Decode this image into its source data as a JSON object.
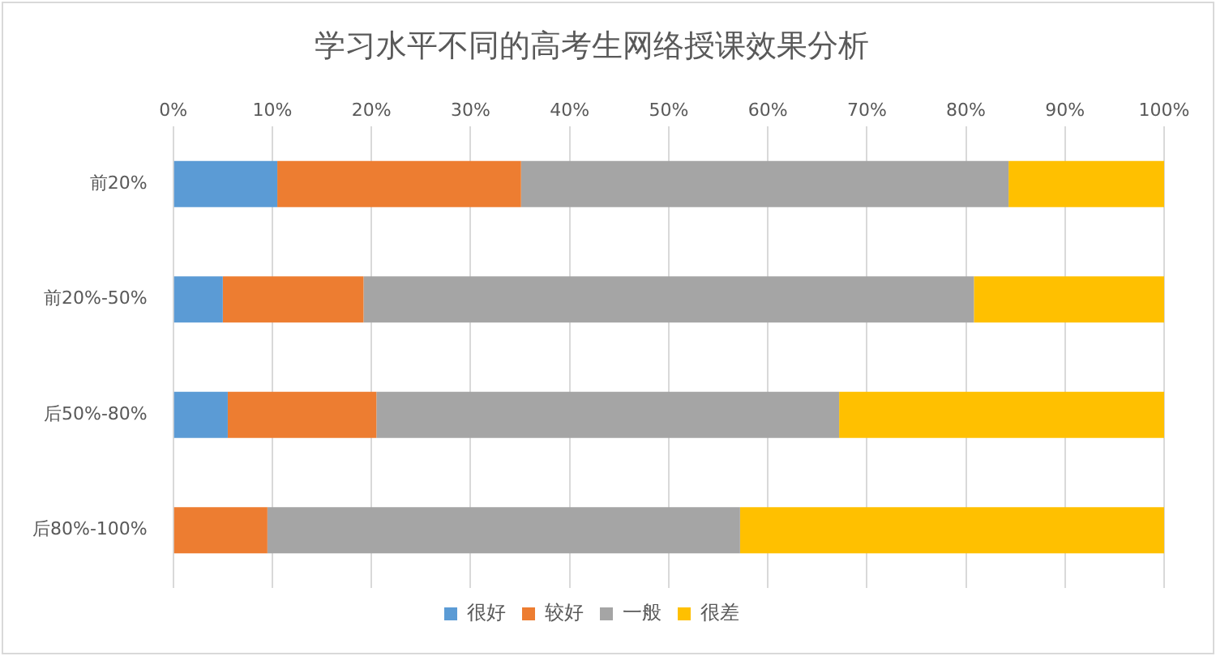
{
  "chart_data": {
    "type": "bar",
    "orientation": "horizontal",
    "stacked": true,
    "title": "学习水平不同的高考生网络授课效果分析",
    "categories": [
      "前20%",
      "前20%-50%",
      "后50%-80%",
      "后80%-100%"
    ],
    "series": [
      {
        "name": "很好",
        "color": "#5b9bd5",
        "values": [
          10.5,
          5.0,
          5.5,
          0
        ]
      },
      {
        "name": "较好",
        "color": "#ed7d31",
        "values": [
          24.6,
          14.2,
          15.0,
          9.5
        ]
      },
      {
        "name": "一般",
        "color": "#a5a5a5",
        "values": [
          49.2,
          61.6,
          46.7,
          47.7
        ]
      },
      {
        "name": "很差",
        "color": "#ffc000",
        "values": [
          15.7,
          19.2,
          32.8,
          42.8
        ]
      }
    ],
    "xlim": [
      0,
      100
    ],
    "xticks": [
      {
        "value": 0,
        "label": "0%"
      },
      {
        "value": 10,
        "label": "10%"
      },
      {
        "value": 20,
        "label": "20%"
      },
      {
        "value": 30,
        "label": "30%"
      },
      {
        "value": 40,
        "label": "40%"
      },
      {
        "value": 50,
        "label": "50%"
      },
      {
        "value": 60,
        "label": "60%"
      },
      {
        "value": 70,
        "label": "70%"
      },
      {
        "value": 80,
        "label": "80%"
      },
      {
        "value": 90,
        "label": "90%"
      },
      {
        "value": 100,
        "label": "100%"
      }
    ],
    "grid": "x",
    "legend": "bottom"
  }
}
